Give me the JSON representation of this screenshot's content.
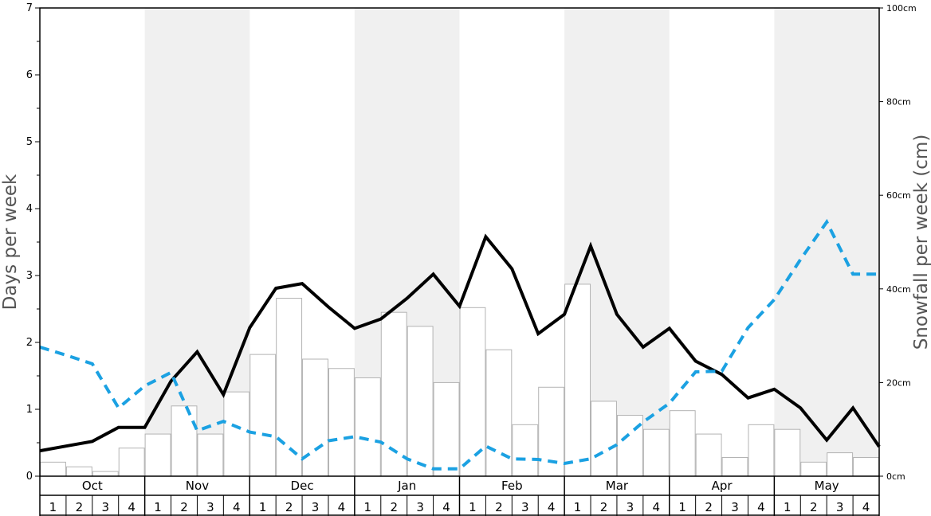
{
  "chart_data": {
    "type": "bar",
    "ylabel_left": "Days per week",
    "ylabel_right": "Snowfall per week (cm)",
    "ylim_left": [
      0,
      7
    ],
    "ylim_right": [
      0,
      100
    ],
    "yticks_left": [
      "0",
      "1",
      "2",
      "3",
      "4",
      "5",
      "6",
      "7"
    ],
    "yticks_right": [
      "0cm",
      "20cm",
      "40cm",
      "60cm",
      "80cm",
      "100cm"
    ],
    "months": [
      "Oct",
      "Nov",
      "Dec",
      "Jan",
      "Feb",
      "Mar",
      "Apr",
      "May"
    ],
    "weeks": [
      "1",
      "2",
      "3",
      "4"
    ],
    "shaded_months": [
      "Nov",
      "Jan",
      "Mar",
      "May"
    ],
    "series": [
      {
        "type": "bar",
        "axis": "right",
        "color": "#ffffff",
        "edge": "#b3b3b3",
        "values": [
          3,
          2,
          1,
          6,
          9,
          15,
          9,
          18,
          26,
          38,
          25,
          23,
          21,
          35,
          32,
          20,
          36,
          27,
          11,
          19,
          41,
          16,
          13,
          10,
          14,
          9,
          4,
          11,
          10,
          3,
          5,
          4
        ]
      },
      {
        "type": "line",
        "axis": "left",
        "color": "#000000",
        "style": "solid",
        "values": [
          0.38,
          0.45,
          0.52,
          0.73,
          0.73,
          1.42,
          1.86,
          1.22,
          2.22,
          2.81,
          2.88,
          2.53,
          2.21,
          2.35,
          2.66,
          3.02,
          2.54,
          3.58,
          3.1,
          2.13,
          2.42,
          3.44,
          2.42,
          1.93,
          2.21,
          1.72,
          1.52,
          1.17,
          1.3,
          1.02,
          0.54,
          1.02,
          0.44
        ]
      },
      {
        "type": "line",
        "axis": "left",
        "color": "#1ba1e2",
        "style": "dashed",
        "values": [
          1.93,
          1.81,
          1.68,
          1.02,
          1.35,
          1.55,
          0.68,
          0.82,
          0.66,
          0.59,
          0.26,
          0.53,
          0.59,
          0.51,
          0.26,
          0.11,
          0.11,
          0.45,
          0.26,
          0.25,
          0.19,
          0.26,
          0.47,
          0.81,
          1.09,
          1.56,
          1.57,
          2.22,
          2.64,
          3.24,
          3.8,
          3.02,
          3.02
        ]
      }
    ]
  }
}
